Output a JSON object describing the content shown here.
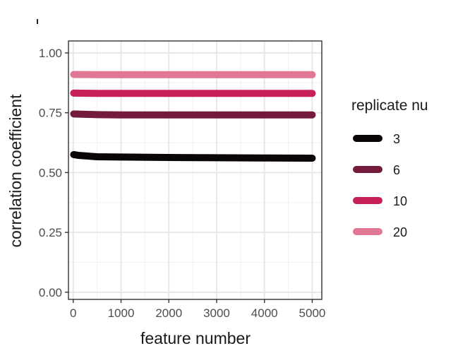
{
  "chart_data": {
    "type": "line",
    "title": "",
    "xlabel": "feature number",
    "ylabel": "correlation coefficient",
    "xlim": [
      -100,
      5200
    ],
    "ylim": [
      -0.03,
      1.05
    ],
    "xticks": [
      0,
      1000,
      2000,
      3000,
      4000,
      5000
    ],
    "xtick_labels": [
      "0",
      "1000",
      "2000",
      "3000",
      "4000",
      "5000"
    ],
    "yticks": [
      0.0,
      0.25,
      0.5,
      0.75,
      1.0
    ],
    "ytick_labels": [
      "0.00",
      "0.25",
      "0.50",
      "0.75",
      "1.00"
    ],
    "grid": true,
    "legend": {
      "title": "replicate nu",
      "position": "right"
    },
    "series": [
      {
        "name": "3",
        "color": "#0a0607",
        "x": [
          10,
          100,
          500,
          1000,
          2000,
          3000,
          4000,
          5000
        ],
        "y": [
          0.575,
          0.572,
          0.566,
          0.565,
          0.563,
          0.562,
          0.561,
          0.56
        ]
      },
      {
        "name": "6",
        "color": "#741a3c",
        "x": [
          10,
          500,
          1000,
          2000,
          3000,
          4000,
          5000
        ],
        "y": [
          0.745,
          0.742,
          0.741,
          0.741,
          0.741,
          0.741,
          0.741
        ]
      },
      {
        "name": "10",
        "color": "#c8215a",
        "x": [
          10,
          500,
          1000,
          2000,
          3000,
          4000,
          5000
        ],
        "y": [
          0.832,
          0.831,
          0.831,
          0.831,
          0.831,
          0.831,
          0.831
        ]
      },
      {
        "name": "20",
        "color": "#e07895",
        "x": [
          10,
          500,
          1000,
          2000,
          3000,
          4000,
          5000
        ],
        "y": [
          0.91,
          0.909,
          0.909,
          0.909,
          0.909,
          0.909,
          0.909
        ]
      }
    ]
  }
}
